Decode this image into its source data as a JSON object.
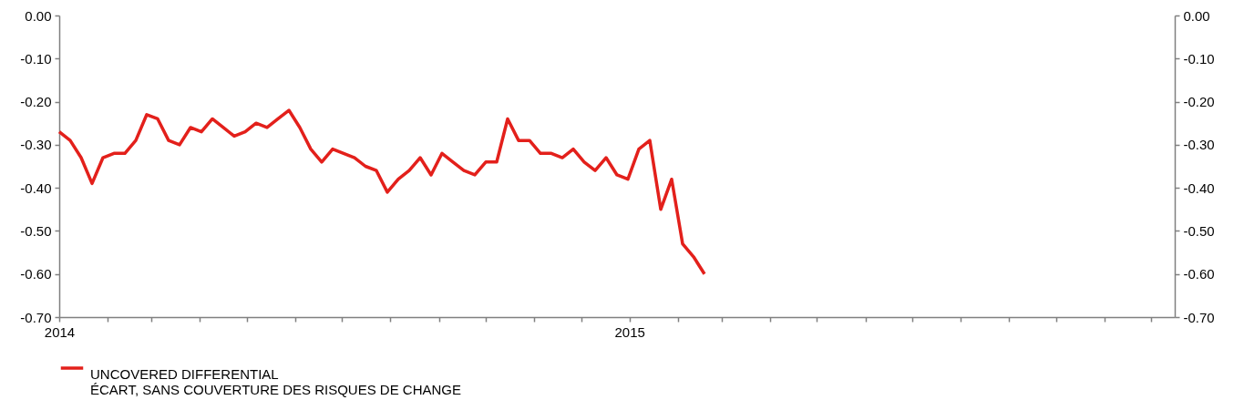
{
  "chart_data": {
    "type": "line",
    "x": [
      "2014-01-01",
      "2014-01-08",
      "2014-01-15",
      "2014-01-22",
      "2014-01-29",
      "2014-02-05",
      "2014-02-12",
      "2014-02-19",
      "2014-02-26",
      "2014-03-05",
      "2014-03-12",
      "2014-03-19",
      "2014-03-26",
      "2014-04-02",
      "2014-04-09",
      "2014-04-16",
      "2014-04-23",
      "2014-04-30",
      "2014-05-07",
      "2014-05-14",
      "2014-05-21",
      "2014-05-28",
      "2014-06-04",
      "2014-06-11",
      "2014-06-18",
      "2014-06-25",
      "2014-07-02",
      "2014-07-09",
      "2014-07-16",
      "2014-07-23",
      "2014-07-30",
      "2014-08-06",
      "2014-08-13",
      "2014-08-20",
      "2014-08-27",
      "2014-09-03",
      "2014-09-10",
      "2014-09-17",
      "2014-09-24",
      "2014-10-01",
      "2014-10-08",
      "2014-10-15",
      "2014-10-22",
      "2014-10-29",
      "2014-11-05",
      "2014-11-12",
      "2014-11-19",
      "2014-11-26",
      "2014-12-03",
      "2014-12-10",
      "2014-12-17",
      "2014-12-24",
      "2014-12-31",
      "2015-01-07",
      "2015-01-14",
      "2015-01-21",
      "2015-01-28",
      "2015-02-04",
      "2015-02-11",
      "2015-02-18"
    ],
    "series": [
      {
        "name": "UNCOVERED DIFFERENTIAL\nÉCART, SANS COUVERTURE DES RISQUES DE CHANGE",
        "color": "#e3201b",
        "values": [
          -0.27,
          -0.29,
          -0.33,
          -0.39,
          -0.33,
          -0.32,
          -0.32,
          -0.29,
          -0.23,
          -0.24,
          -0.29,
          -0.3,
          -0.26,
          -0.27,
          -0.24,
          -0.26,
          -0.28,
          -0.27,
          -0.25,
          -0.26,
          -0.24,
          -0.22,
          -0.26,
          -0.31,
          -0.34,
          -0.31,
          -0.32,
          -0.33,
          -0.35,
          -0.36,
          -0.41,
          -0.38,
          -0.36,
          -0.33,
          -0.37,
          -0.32,
          -0.34,
          -0.36,
          -0.37,
          -0.34,
          -0.34,
          -0.24,
          -0.29,
          -0.29,
          -0.32,
          -0.32,
          -0.33,
          -0.31,
          -0.34,
          -0.36,
          -0.33,
          -0.37,
          -0.38,
          -0.31,
          -0.29,
          -0.45,
          -0.38,
          -0.53,
          -0.56,
          -0.6
        ]
      }
    ],
    "xlim": [
      "2014-01-01",
      "2015-12-16"
    ],
    "xticks": [
      {
        "value": "2014-01",
        "label": "2014"
      },
      {
        "value": "2014-02",
        "label": null
      },
      {
        "value": "2014-03",
        "label": null
      },
      {
        "value": "2014-04",
        "label": null
      },
      {
        "value": "2014-05",
        "label": null
      },
      {
        "value": "2014-06",
        "label": null
      },
      {
        "value": "2014-07",
        "label": null
      },
      {
        "value": "2014-08",
        "label": null
      },
      {
        "value": "2014-09",
        "label": null
      },
      {
        "value": "2014-10",
        "label": null
      },
      {
        "value": "2014-11",
        "label": null
      },
      {
        "value": "2014-12",
        "label": null
      },
      {
        "value": "2015-01",
        "label": "2015"
      },
      {
        "value": "2015-02",
        "label": null
      },
      {
        "value": "2015-03",
        "label": null
      },
      {
        "value": "2015-04",
        "label": null
      },
      {
        "value": "2015-05",
        "label": null
      },
      {
        "value": "2015-06",
        "label": null
      },
      {
        "value": "2015-07",
        "label": null
      },
      {
        "value": "2015-08",
        "label": null
      },
      {
        "value": "2015-09",
        "label": null
      },
      {
        "value": "2015-10",
        "label": null
      },
      {
        "value": "2015-11",
        "label": null
      },
      {
        "value": "2015-12",
        "label": null
      }
    ],
    "ylim": [
      -0.7,
      0
    ],
    "yticks": [
      {
        "value": -0.7,
        "label": "-0.70"
      },
      {
        "value": -0.6,
        "label": "-0.60"
      },
      {
        "value": -0.5,
        "label": "-0.50"
      },
      {
        "value": -0.4,
        "label": "-0.40"
      },
      {
        "value": -0.3,
        "label": "-0.30"
      },
      {
        "value": -0.2,
        "label": "-0.20"
      },
      {
        "value": -0.1,
        "label": "-0.10"
      },
      {
        "value": 0,
        "label": "0.00"
      }
    ],
    "y2lim": [
      -0.7,
      0
    ],
    "y2ticks": [
      {
        "value": -0.7,
        "label": "-0.70"
      },
      {
        "value": -0.6,
        "label": "-0.60"
      },
      {
        "value": -0.5,
        "label": "-0.50"
      },
      {
        "value": -0.4,
        "label": "-0.40"
      },
      {
        "value": -0.3,
        "label": "-0.30"
      },
      {
        "value": -0.2,
        "label": "-0.20"
      },
      {
        "value": -0.1,
        "label": "-0.10"
      },
      {
        "value": 0,
        "label": "0.00"
      }
    ],
    "grid": false,
    "legend": "bottom left",
    "line_style": "solid"
  }
}
